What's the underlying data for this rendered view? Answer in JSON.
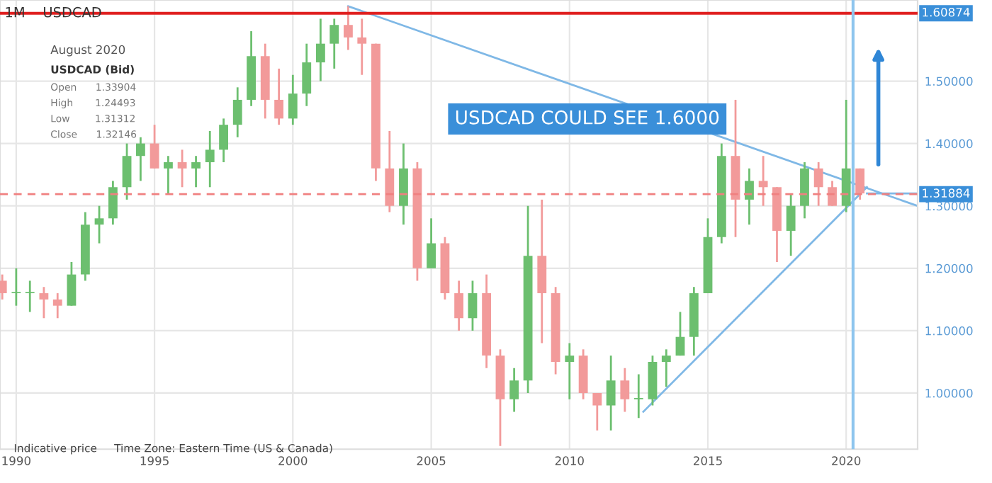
{
  "chart_data": {
    "type": "candlestick",
    "annotations": [
      "1M    USDCAD",
      "August 2020",
      "USDCAD (Bid)",
      "Open      1.33904",
      "High       1.24493",
      "Low        1.31312",
      "Close      1.32146",
      "Indicative price     Time Zone: Eastern Time (US & Canada)",
      "USDCAD COULD SEE 1.6000"
    ],
    "x": [
      "1989-07",
      "1990-01",
      "1990-07",
      "1991-01",
      "1991-07",
      "1992-01",
      "1992-07",
      "1993-01",
      "1993-07",
      "1994-01",
      "1994-07",
      "1995-01",
      "1995-07",
      "1996-01",
      "1996-07",
      "1997-01",
      "1997-07",
      "1998-01",
      "1998-07",
      "1999-01",
      "1999-07",
      "2000-01",
      "2000-07",
      "2001-01",
      "2001-07",
      "2002-01",
      "2002-07",
      "2003-01",
      "2003-07",
      "2004-01",
      "2004-07",
      "2005-01",
      "2005-07",
      "2006-01",
      "2006-07",
      "2007-01",
      "2007-07",
      "2008-01",
      "2008-07",
      "2009-01",
      "2009-07",
      "2010-01",
      "2010-07",
      "2011-01",
      "2011-07",
      "2012-01",
      "2012-07",
      "2013-01",
      "2013-07",
      "2014-01",
      "2014-07",
      "2015-01",
      "2015-07",
      "2016-01",
      "2016-07",
      "2017-01",
      "2017-07",
      "2018-01",
      "2018-07",
      "2019-01",
      "2019-07",
      "2020-01",
      "2020-07"
    ],
    "ohlc": [
      [
        1.18,
        1.19,
        1.15,
        1.16
      ],
      [
        1.16,
        1.2,
        1.14,
        1.16
      ],
      [
        1.16,
        1.18,
        1.13,
        1.16
      ],
      [
        1.16,
        1.17,
        1.12,
        1.15
      ],
      [
        1.15,
        1.16,
        1.12,
        1.14
      ],
      [
        1.14,
        1.21,
        1.14,
        1.19
      ],
      [
        1.19,
        1.29,
        1.18,
        1.27
      ],
      [
        1.27,
        1.3,
        1.24,
        1.28
      ],
      [
        1.28,
        1.34,
        1.27,
        1.33
      ],
      [
        1.33,
        1.4,
        1.31,
        1.38
      ],
      [
        1.38,
        1.41,
        1.34,
        1.4
      ],
      [
        1.4,
        1.43,
        1.36,
        1.36
      ],
      [
        1.36,
        1.38,
        1.32,
        1.37
      ],
      [
        1.37,
        1.39,
        1.33,
        1.36
      ],
      [
        1.36,
        1.38,
        1.33,
        1.37
      ],
      [
        1.37,
        1.42,
        1.33,
        1.39
      ],
      [
        1.39,
        1.44,
        1.37,
        1.43
      ],
      [
        1.43,
        1.49,
        1.41,
        1.47
      ],
      [
        1.47,
        1.58,
        1.46,
        1.54
      ],
      [
        1.54,
        1.56,
        1.44,
        1.47
      ],
      [
        1.47,
        1.52,
        1.43,
        1.44
      ],
      [
        1.44,
        1.51,
        1.43,
        1.48
      ],
      [
        1.48,
        1.56,
        1.46,
        1.53
      ],
      [
        1.53,
        1.6,
        1.5,
        1.56
      ],
      [
        1.56,
        1.6,
        1.52,
        1.59
      ],
      [
        1.59,
        1.62,
        1.55,
        1.57
      ],
      [
        1.57,
        1.6,
        1.51,
        1.56
      ],
      [
        1.56,
        1.56,
        1.34,
        1.36
      ],
      [
        1.36,
        1.42,
        1.29,
        1.3
      ],
      [
        1.3,
        1.4,
        1.27,
        1.36
      ],
      [
        1.36,
        1.37,
        1.18,
        1.2
      ],
      [
        1.2,
        1.28,
        1.2,
        1.24
      ],
      [
        1.24,
        1.25,
        1.15,
        1.16
      ],
      [
        1.16,
        1.18,
        1.1,
        1.12
      ],
      [
        1.12,
        1.18,
        1.1,
        1.16
      ],
      [
        1.16,
        1.19,
        1.04,
        1.06
      ],
      [
        1.06,
        1.07,
        0.915,
        0.99
      ],
      [
        0.99,
        1.04,
        0.97,
        1.02
      ],
      [
        1.02,
        1.3,
        1.0,
        1.22
      ],
      [
        1.22,
        1.31,
        1.08,
        1.16
      ],
      [
        1.16,
        1.17,
        1.03,
        1.05
      ],
      [
        1.05,
        1.08,
        0.99,
        1.06
      ],
      [
        1.06,
        1.07,
        0.99,
        1.0
      ],
      [
        1.0,
        1.0,
        0.94,
        0.98
      ],
      [
        0.98,
        1.06,
        0.94,
        1.02
      ],
      [
        1.02,
        1.04,
        0.97,
        0.99
      ],
      [
        0.99,
        1.03,
        0.96,
        0.99
      ],
      [
        0.99,
        1.06,
        0.98,
        1.05
      ],
      [
        1.05,
        1.07,
        1.01,
        1.06
      ],
      [
        1.06,
        1.13,
        1.06,
        1.09
      ],
      [
        1.09,
        1.17,
        1.06,
        1.16
      ],
      [
        1.16,
        1.28,
        1.16,
        1.25
      ],
      [
        1.25,
        1.4,
        1.24,
        1.38
      ],
      [
        1.38,
        1.47,
        1.25,
        1.31
      ],
      [
        1.31,
        1.36,
        1.27,
        1.34
      ],
      [
        1.34,
        1.38,
        1.3,
        1.33
      ],
      [
        1.33,
        1.33,
        1.21,
        1.26
      ],
      [
        1.26,
        1.32,
        1.22,
        1.3
      ],
      [
        1.3,
        1.37,
        1.28,
        1.36
      ],
      [
        1.36,
        1.37,
        1.3,
        1.33
      ],
      [
        1.33,
        1.34,
        1.3,
        1.3
      ],
      [
        1.3,
        1.47,
        1.29,
        1.36
      ],
      [
        1.36,
        1.36,
        1.31,
        1.32
      ]
    ],
    "series": [
      {
        "type": "line",
        "color": "#7fb8e6",
        "x": [
          "2002-01",
          "2022-08"
        ],
        "values": [
          1.62,
          1.3
        ]
      },
      {
        "type": "line",
        "color": "#7fb8e6",
        "x": [
          "2012-09",
          "2020-10"
        ],
        "values": [
          0.97,
          1.33
        ]
      },
      {
        "type": "line",
        "color": "#7fb8e6",
        "x": [
          "2020-10",
          "2022-08"
        ],
        "values": [
          1.32,
          1.32
        ]
      }
    ],
    "ref_lines": [
      {
        "axis": "y",
        "value": 1.60874,
        "label": "1.60874",
        "color": "#e02020",
        "line_style": "solid"
      },
      {
        "axis": "y",
        "value": 1.31884,
        "label": "1.31884",
        "color": "#f08080",
        "line_style": "dashed"
      },
      {
        "axis": "x",
        "value": "2020-04",
        "color": "#8ec5ee",
        "line_style": "solid"
      }
    ],
    "xlim": [
      "1989-06",
      "2022-08"
    ],
    "ylim": [
      0.91,
      1.63
    ],
    "xticks": [
      {
        "value": "1990",
        "label": "1990"
      },
      {
        "value": "1995",
        "label": "1995"
      },
      {
        "value": "2000",
        "label": "2000"
      },
      {
        "value": "2005",
        "label": "2005"
      },
      {
        "value": "2010",
        "label": "2010"
      },
      {
        "value": "2015",
        "label": "2015"
      },
      {
        "value": "2020",
        "label": "2020"
      }
    ],
    "yticks": [
      {
        "value": 1.0,
        "label": "1.00000"
      },
      {
        "value": 1.1,
        "label": "1.10000"
      },
      {
        "value": 1.2,
        "label": "1.20000"
      },
      {
        "value": 1.3,
        "label": "1.30000"
      },
      {
        "value": 1.4,
        "label": "1.40000"
      },
      {
        "value": 1.5,
        "label": "1.50000"
      }
    ],
    "grid": true
  }
}
